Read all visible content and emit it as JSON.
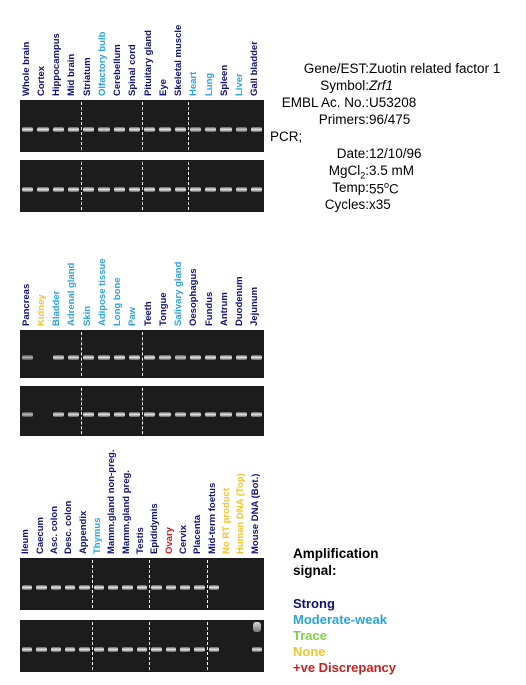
{
  "colors": {
    "strong": "#0f0f7a",
    "moderate": "#2aa3de",
    "trace": "#7fd04a",
    "none": "#f2c430",
    "discrepancy": "#cc1e1e"
  },
  "panels": [
    {
      "lanes": [
        {
          "label": "Whole brain",
          "signal": "strong",
          "top": 1,
          "bottom": 1
        },
        {
          "label": "Cortex",
          "signal": "strong",
          "top": 1,
          "bottom": 1
        },
        {
          "label": "Hippocampus",
          "signal": "strong",
          "top": 1,
          "bottom": 1
        },
        {
          "label": "Mid brain",
          "signal": "strong",
          "top": 1,
          "bottom": 1
        },
        {
          "label": "Striatum",
          "signal": "strong",
          "top": 1,
          "bottom": 1
        },
        {
          "label": "Olfactory bulb",
          "signal": "moderate",
          "top": 0.9,
          "bottom": 1
        },
        {
          "label": "Cerebellum",
          "signal": "strong",
          "top": 1,
          "bottom": 1
        },
        {
          "label": "Spinal cord",
          "signal": "strong",
          "top": 1,
          "bottom": 1
        },
        {
          "label": "Pituitary gland",
          "signal": "strong",
          "top": 1,
          "bottom": 1
        },
        {
          "label": "Eye",
          "signal": "strong",
          "top": 1,
          "bottom": 1
        },
        {
          "label": "Skeletal muscle",
          "signal": "strong",
          "top": 1,
          "bottom": 1
        },
        {
          "label": "Heart",
          "signal": "moderate",
          "top": 0.85,
          "bottom": 1
        },
        {
          "label": "Lung",
          "signal": "moderate",
          "top": 0.9,
          "bottom": 1
        },
        {
          "label": "Spleen",
          "signal": "strong",
          "top": 1,
          "bottom": 1
        },
        {
          "label": "Liver",
          "signal": "moderate",
          "top": 0.8,
          "bottom": 0.95
        },
        {
          "label": "Gall bladder",
          "signal": "strong",
          "top": 1,
          "bottom": 1
        }
      ],
      "separators": [
        4,
        8,
        11
      ]
    },
    {
      "lanes": [
        {
          "label": "Pancreas",
          "signal": "strong",
          "top": 0.6,
          "bottom": 0.65
        },
        {
          "label": "Kidney",
          "signal": "none",
          "top": 0,
          "bottom": 0
        },
        {
          "label": "Bladder",
          "signal": "moderate",
          "top": 0.9,
          "bottom": 0.9
        },
        {
          "label": "Adrenal gland",
          "signal": "moderate",
          "top": 0.9,
          "bottom": 0.95
        },
        {
          "label": "Skin",
          "signal": "moderate",
          "top": 0.95,
          "bottom": 1
        },
        {
          "label": "Adipose tissue",
          "signal": "moderate",
          "top": 1,
          "bottom": 1
        },
        {
          "label": "Long bone",
          "signal": "moderate",
          "top": 1,
          "bottom": 1
        },
        {
          "label": "Paw",
          "signal": "moderate",
          "top": 1,
          "bottom": 1
        },
        {
          "label": "Teeth",
          "signal": "strong",
          "top": 1,
          "bottom": 1
        },
        {
          "label": "Tongue",
          "signal": "strong",
          "top": 0.9,
          "bottom": 1
        },
        {
          "label": "Salivary gland",
          "signal": "moderate",
          "top": 0.8,
          "bottom": 0.9
        },
        {
          "label": "Oesophagus",
          "signal": "strong",
          "top": 1,
          "bottom": 1
        },
        {
          "label": "Fundus",
          "signal": "strong",
          "top": 1,
          "bottom": 1
        },
        {
          "label": "Antrum",
          "signal": "strong",
          "top": 1,
          "bottom": 1
        },
        {
          "label": "Duodenum",
          "signal": "strong",
          "top": 1,
          "bottom": 1
        },
        {
          "label": "Jejunum",
          "signal": "strong",
          "top": 1,
          "bottom": 1
        }
      ],
      "separators": [
        4,
        8
      ]
    },
    {
      "lanes": [
        {
          "label": "Ileum",
          "signal": "strong",
          "top": 1,
          "bottom": 1
        },
        {
          "label": "Caecum",
          "signal": "strong",
          "top": 1,
          "bottom": 1
        },
        {
          "label": "Asc. colon",
          "signal": "strong",
          "top": 1,
          "bottom": 1
        },
        {
          "label": "Desc. colon",
          "signal": "strong",
          "top": 1,
          "bottom": 1
        },
        {
          "label": "Appendix",
          "signal": "strong",
          "top": 1,
          "bottom": 1
        },
        {
          "label": "Thymus",
          "signal": "moderate",
          "top": 1,
          "bottom": 1
        },
        {
          "label": "Mamm.gland non-preg.",
          "signal": "strong",
          "top": 1,
          "bottom": 1
        },
        {
          "label": "Mamm.gland preg.",
          "signal": "strong",
          "top": 1,
          "bottom": 1
        },
        {
          "label": "Testis",
          "signal": "strong",
          "top": 1,
          "bottom": 1
        },
        {
          "label": "Epididymis",
          "signal": "strong",
          "top": 1,
          "bottom": 1
        },
        {
          "label": "Ovary",
          "signal": "discrepancy",
          "top": 0.95,
          "bottom": 1
        },
        {
          "label": "Cervix",
          "signal": "strong",
          "top": 1,
          "bottom": 1
        },
        {
          "label": "Placenta",
          "signal": "strong",
          "top": 1,
          "bottom": 1
        },
        {
          "label": "Mid-term foetus",
          "signal": "strong",
          "top": 1,
          "bottom": 1
        },
        {
          "label": "No RT product",
          "signal": "none",
          "top": 0,
          "bottom": 0
        },
        {
          "label": "Human DNA (Top)",
          "signal": "none",
          "top": 0,
          "bottom": 0
        },
        {
          "label": "Mouse DNA (Bot.)",
          "signal": "strong",
          "top": 0,
          "bottom": 0.95
        }
      ],
      "separators": [
        5,
        9,
        13
      ]
    }
  ],
  "info": {
    "gene_key": "Gene/EST:",
    "gene_val": "Zuotin related factor 1",
    "symbol_key": "Symbol:",
    "symbol_val": "Zrf1",
    "embl_key": "EMBL Ac. No.:",
    "embl_val": "U53208",
    "primers_key": "Primers:",
    "primers_val": "96/475",
    "pcr_label": "PCR;",
    "date_key": "Date:",
    "date_val": "12/10/96",
    "mgcl_key_a": "MgCl",
    "mgcl_key_sub": "2",
    "mgcl_key_b": ":",
    "mgcl_val": "3.5 mM",
    "temp_key": "Temp:",
    "temp_val_num": "55",
    "temp_val_sup": "o",
    "temp_val_unit": "C",
    "cycles_key": "Cycles:",
    "cycles_val": "x35"
  },
  "legend": {
    "title_line1": "Amplification",
    "title_line2": "signal:",
    "strong": "Strong",
    "moderate": "Moderate-weak",
    "trace": "Trace",
    "none": "None",
    "discrepancy": "+ve Discrepancy"
  }
}
